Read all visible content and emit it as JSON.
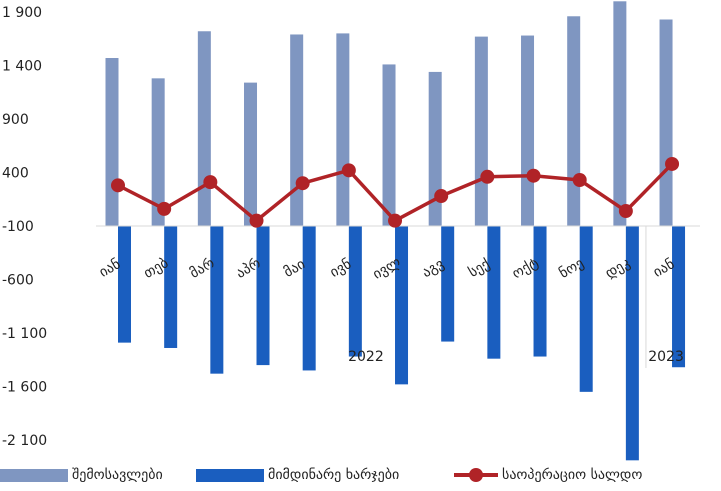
{
  "chart_data": {
    "type": "bar",
    "categories": [
      "იან",
      "თებ",
      "მარ",
      "აპრ",
      "მაი",
      "ივნ",
      "ივლ",
      "აგვ",
      "სექ",
      "ოქტ",
      "ნოე",
      "დეკ",
      "იან"
    ],
    "year_labels": [
      "2022",
      "2023"
    ],
    "y_ticks": [
      "1 900",
      "1 400",
      "900",
      "400",
      "-100",
      "-600",
      "-1 100",
      "-1 600",
      "-2 100"
    ],
    "y_tick_values": [
      1900,
      1400,
      900,
      400,
      -100,
      -600,
      -1100,
      -1600,
      -2100
    ],
    "ylim": [
      -2100,
      1900
    ],
    "series": [
      {
        "name": "შემოსავლები",
        "type": "bar",
        "color": "#7f96c1",
        "values": [
          1470,
          1280,
          1720,
          1240,
          1690,
          1700,
          1410,
          1340,
          1670,
          1680,
          1860,
          2000,
          1830
        ]
      },
      {
        "name": "მიმდინარე ხარჯები",
        "type": "bar",
        "color": "#1a5ebf",
        "values": [
          -1190,
          -1240,
          -1480,
          -1400,
          -1450,
          -1320,
          -1580,
          -1180,
          -1340,
          -1320,
          -1650,
          -2290,
          -1420
        ]
      },
      {
        "name": "საოპერაციო სალდო",
        "type": "line",
        "color": "#b02327",
        "values": [
          280,
          60,
          310,
          -50,
          300,
          420,
          -50,
          180,
          360,
          370,
          330,
          40,
          480
        ]
      }
    ]
  }
}
